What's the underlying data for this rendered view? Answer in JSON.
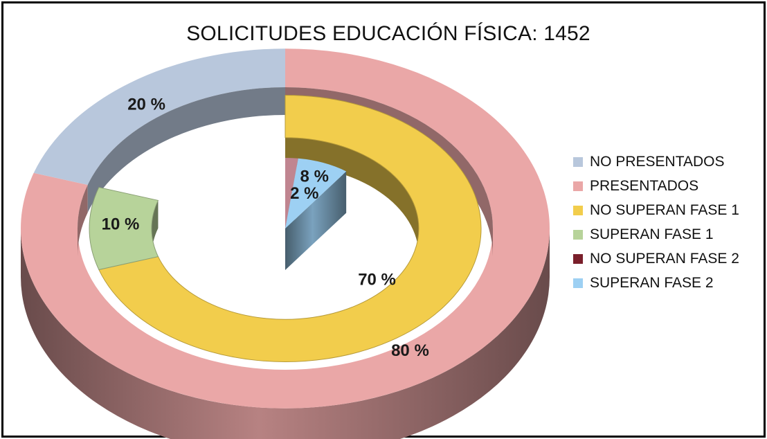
{
  "chart_data": {
    "type": "donut",
    "title": "SOLICITUDES EDUCACIÓN FÍSICA: 1452",
    "rings": [
      {
        "ring": "outer",
        "slices": [
          {
            "label": "PRESENTADOS",
            "value": 80,
            "display": "80 %",
            "color": "#eaa7a7"
          },
          {
            "label": "NO PRESENTADOS",
            "value": 20,
            "display": "20 %",
            "color": "#b8c7dc"
          }
        ]
      },
      {
        "ring": "middle",
        "slices": [
          {
            "label": "NO SUPERAN FASE 1",
            "value": 70,
            "display": "70 %",
            "color": "#f2cd4c"
          },
          {
            "label": "SUPERAN FASE 1",
            "value": 10,
            "display": "10 %",
            "color": "#b7d39a"
          }
        ]
      },
      {
        "ring": "inner",
        "slices": [
          {
            "label": "NO SUPERAN FASE 2",
            "value": 2,
            "display": "2 %",
            "color": "#c08590"
          },
          {
            "label": "SUPERAN FASE 2",
            "value": 8,
            "display": "8 %",
            "color": "#9dd0f3"
          }
        ]
      }
    ],
    "legend": {
      "placement": "right",
      "entries": [
        {
          "label": "NO PRESENTADOS",
          "color": "#b8c7dc"
        },
        {
          "label": "PRESENTADOS",
          "color": "#eaa7a7"
        },
        {
          "label": "NO SUPERAN FASE 1",
          "color": "#f2cd4c"
        },
        {
          "label": "SUPERAN FASE 1",
          "color": "#b7d39a"
        },
        {
          "label": "NO SUPERAN FASE 2",
          "color": "#7a1f2b"
        },
        {
          "label": "SUPERAN FASE 2",
          "color": "#9dd0f3"
        }
      ]
    }
  }
}
